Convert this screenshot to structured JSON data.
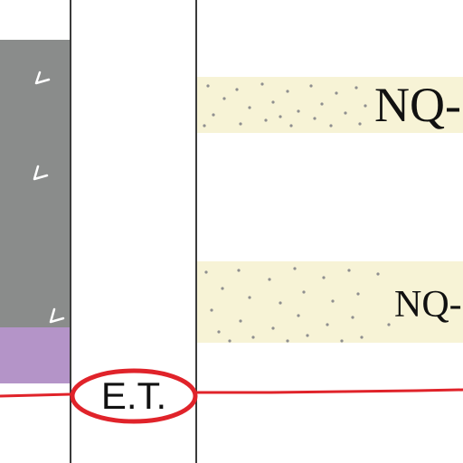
{
  "units": {
    "upper_label": "NQ-",
    "lower_label": "NQ-"
  },
  "contact_marker": {
    "label": "E.T."
  },
  "colors": {
    "gray_unit": "#8a8c8b",
    "purple_unit": "#b494c8",
    "sand_fill": "#f7f3d6",
    "sand_dots": "#8f8f8f",
    "contact_line": "#e0232a",
    "column_border": "#3a3a3a"
  },
  "symbols": {
    "gray_unit_pattern": "volcanic-v-icon"
  }
}
